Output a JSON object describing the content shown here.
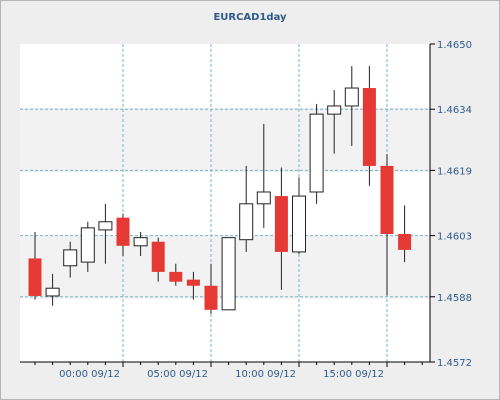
{
  "chart_data": {
    "type": "candlestick",
    "title": "EURCAD1day",
    "y_ticks": [
      1.4572,
      1.4588,
      1.4603,
      1.4619,
      1.4634,
      1.465
    ],
    "ylim": [
      1.4572,
      1.465
    ],
    "x_ticks": [
      {
        "label": "00:00 09/12",
        "index": 5
      },
      {
        "label": "05:00 09/12",
        "index": 10
      },
      {
        "label": "10:00 09/12",
        "index": 15
      },
      {
        "label": "15:00 09/12",
        "index": 20
      }
    ],
    "grid": true,
    "colors": {
      "bull_fill": "#ffffff",
      "bear_fill": "#e53935",
      "wick": "#222222",
      "grid": "#79b4c9",
      "axis": "#000000",
      "tick_text": "#2f5b8a"
    },
    "candles": [
      {
        "open": 1.45974,
        "high": 1.46039,
        "low": 1.45873,
        "close": 1.45882
      },
      {
        "open": 1.45882,
        "high": 1.45936,
        "low": 1.45858,
        "close": 1.45901
      },
      {
        "open": 1.45956,
        "high": 1.46015,
        "low": 1.45927,
        "close": 1.45995
      },
      {
        "open": 1.45965,
        "high": 1.46064,
        "low": 1.45941,
        "close": 1.46049
      },
      {
        "open": 1.46044,
        "high": 1.46108,
        "low": 1.45961,
        "close": 1.46064
      },
      {
        "open": 1.46074,
        "high": 1.46084,
        "low": 1.4598,
        "close": 1.46005
      },
      {
        "open": 1.46005,
        "high": 1.46039,
        "low": 1.4598,
        "close": 1.46025
      },
      {
        "open": 1.46015,
        "high": 1.46025,
        "low": 1.45917,
        "close": 1.45941
      },
      {
        "open": 1.45941,
        "high": 1.45961,
        "low": 1.45907,
        "close": 1.45917
      },
      {
        "open": 1.45922,
        "high": 1.45941,
        "low": 1.45873,
        "close": 1.45907
      },
      {
        "open": 1.45907,
        "high": 1.45961,
        "low": 1.45838,
        "close": 1.45848
      },
      {
        "open": 1.45848,
        "high": 1.4602,
        "low": 1.45848,
        "close": 1.46025
      },
      {
        "open": 1.4602,
        "high": 1.46201,
        "low": 1.4599,
        "close": 1.46108
      },
      {
        "open": 1.46108,
        "high": 1.46304,
        "low": 1.46049,
        "close": 1.46137
      },
      {
        "open": 1.46127,
        "high": 1.46197,
        "low": 1.45897,
        "close": 1.4599
      },
      {
        "open": 1.4599,
        "high": 1.46173,
        "low": 1.45985,
        "close": 1.46127
      },
      {
        "open": 1.46137,
        "high": 1.46353,
        "low": 1.46108,
        "close": 1.46328
      },
      {
        "open": 1.46328,
        "high": 1.46387,
        "low": 1.46231,
        "close": 1.46348
      },
      {
        "open": 1.46348,
        "high": 1.46446,
        "low": 1.4625,
        "close": 1.46392
      },
      {
        "open": 1.46392,
        "high": 1.46446,
        "low": 1.46152,
        "close": 1.46201
      },
      {
        "open": 1.46201,
        "high": 1.4623,
        "low": 1.45883,
        "close": 1.46034
      },
      {
        "open": 1.46034,
        "high": 1.46104,
        "low": 1.45965,
        "close": 1.45995
      }
    ]
  }
}
